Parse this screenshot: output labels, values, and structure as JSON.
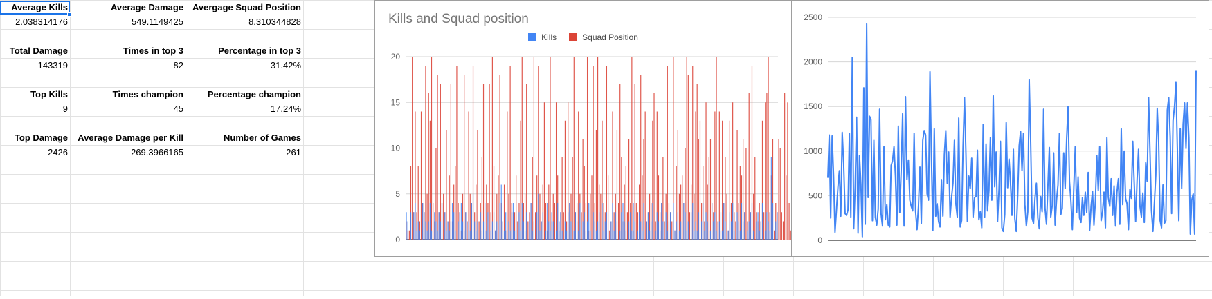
{
  "sheet": {
    "colors": {
      "gridline": "#e2e2e2",
      "selection": "#1a73e8"
    },
    "rows": [
      {
        "cells": [
          {
            "col": 0,
            "text": "Average Kills",
            "bold": true,
            "selected": true
          },
          {
            "col": 1,
            "text": "Average Damage",
            "bold": true
          },
          {
            "col": 2,
            "text": "Avergage Squad Position",
            "bold": true
          }
        ]
      },
      {
        "cells": [
          {
            "col": 0,
            "text": "2.038314176"
          },
          {
            "col": 1,
            "text": "549.1149425"
          },
          {
            "col": 2,
            "text": "8.310344828"
          }
        ]
      },
      {
        "cells": []
      },
      {
        "cells": [
          {
            "col": 0,
            "text": "Total Damage",
            "bold": true
          },
          {
            "col": 1,
            "text": "Times in top 3",
            "bold": true
          },
          {
            "col": 2,
            "text": "Percentage in top 3",
            "bold": true
          }
        ]
      },
      {
        "cells": [
          {
            "col": 0,
            "text": "143319"
          },
          {
            "col": 1,
            "text": "82"
          },
          {
            "col": 2,
            "text": "31.42%"
          }
        ]
      },
      {
        "cells": []
      },
      {
        "cells": [
          {
            "col": 0,
            "text": "Top Kills",
            "bold": true
          },
          {
            "col": 1,
            "text": "Times champion",
            "bold": true
          },
          {
            "col": 2,
            "text": "Percentage champion",
            "bold": true
          }
        ]
      },
      {
        "cells": [
          {
            "col": 0,
            "text": "9"
          },
          {
            "col": 1,
            "text": "45"
          },
          {
            "col": 2,
            "text": "17.24%"
          }
        ]
      },
      {
        "cells": []
      },
      {
        "cells": [
          {
            "col": 0,
            "text": "Top Damage",
            "bold": true
          },
          {
            "col": 1,
            "text": "Average Damage per Kill",
            "bold": true
          },
          {
            "col": 2,
            "text": "Number of Games",
            "bold": true
          }
        ]
      },
      {
        "cells": [
          {
            "col": 0,
            "text": "2426"
          },
          {
            "col": 1,
            "text": "269.3966165"
          },
          {
            "col": 2,
            "text": "261"
          }
        ]
      }
    ]
  },
  "chart_data": [
    {
      "type": "bar",
      "title": "Kills and Squad position",
      "xlabel": "",
      "ylabel": "",
      "ylim": [
        0,
        20
      ],
      "yticks": [
        0,
        5,
        10,
        15,
        20
      ],
      "grid": true,
      "legend": "top",
      "series": [
        {
          "name": "Kills",
          "color": "#4285f4",
          "values": [
            3,
            2,
            0,
            3,
            0,
            3,
            4,
            1,
            2,
            1,
            0,
            4,
            3,
            2,
            1,
            2,
            4,
            1,
            0,
            3,
            2,
            1,
            3,
            2,
            4,
            0,
            3,
            1,
            2,
            1,
            2,
            4,
            3,
            1,
            0,
            2,
            3,
            4,
            2,
            1,
            3,
            0,
            2,
            1,
            4,
            5,
            2,
            1,
            2,
            0,
            3,
            1,
            2,
            4,
            1,
            3,
            0,
            1,
            2,
            3,
            1,
            2,
            0,
            4,
            6,
            2,
            1,
            3,
            0,
            2,
            1,
            3,
            4,
            1,
            2,
            0,
            3,
            1,
            4,
            2,
            1,
            3,
            0,
            2,
            4,
            1,
            2,
            0,
            3,
            5,
            1,
            2,
            3,
            0,
            1,
            4,
            2,
            1,
            3,
            2,
            0,
            1,
            4,
            2,
            3,
            1,
            0,
            2,
            1,
            3,
            4,
            2,
            0,
            1,
            3,
            2,
            1,
            4,
            0,
            2,
            3,
            1,
            2,
            4,
            1,
            0,
            3,
            2,
            1,
            2,
            3,
            0,
            4,
            1,
            2,
            3,
            1,
            0,
            2,
            4,
            1,
            3,
            2,
            0,
            1,
            3,
            4,
            2,
            1,
            0,
            2,
            3,
            1,
            4,
            2,
            0,
            1,
            3,
            2,
            1,
            4,
            0,
            2,
            3,
            1,
            2,
            4,
            0,
            1,
            3,
            2,
            1,
            4,
            2,
            0,
            3,
            1,
            2,
            3,
            0,
            4,
            1,
            2,
            3,
            1,
            2,
            0,
            4,
            3,
            1,
            2,
            0,
            3,
            4,
            1,
            2,
            1,
            3,
            0,
            2,
            4,
            1,
            3,
            2,
            0,
            1,
            4,
            2,
            3,
            1,
            0,
            2,
            3,
            1,
            4,
            2,
            0,
            1,
            3,
            2,
            4,
            1,
            0,
            3,
            2,
            1,
            4,
            2,
            3,
            0,
            1,
            2,
            3,
            4,
            1,
            0,
            2,
            3,
            1,
            2,
            4,
            0,
            1,
            3,
            2,
            1,
            9,
            4,
            0,
            2,
            3
          ]
        },
        {
          "name": "Squad Position",
          "color": "#db4437",
          "values": [
            2,
            1,
            1,
            8,
            20,
            3,
            14,
            3,
            8,
            2,
            14,
            4,
            3,
            19,
            5,
            16,
            13,
            20,
            4,
            2,
            10,
            18,
            3,
            17,
            4,
            5,
            3,
            12,
            2,
            7,
            17,
            2,
            6,
            8,
            19,
            4,
            3,
            1,
            5,
            18,
            3,
            2,
            14,
            5,
            4,
            19,
            3,
            6,
            12,
            2,
            4,
            9,
            17,
            1,
            6,
            4,
            17,
            3,
            20,
            8,
            1,
            5,
            7,
            18,
            4,
            2,
            6,
            1,
            14,
            5,
            19,
            4,
            3,
            3,
            7,
            2,
            4,
            13,
            20,
            4,
            5,
            17,
            2,
            3,
            4,
            9,
            20,
            3,
            7,
            19,
            5,
            2,
            6,
            15,
            4,
            1,
            6,
            20,
            2,
            5,
            4,
            15,
            7,
            1,
            3,
            9,
            3,
            13,
            2,
            15,
            4,
            5,
            9,
            20,
            3,
            4,
            14,
            5,
            3,
            11,
            8,
            4,
            20,
            1,
            5,
            7,
            19,
            4,
            12,
            20,
            6,
            5,
            13,
            4,
            3,
            19,
            7,
            1,
            2,
            14,
            3,
            5,
            12,
            4,
            17,
            9,
            2,
            6,
            8,
            3,
            11,
            4,
            20,
            1,
            17,
            4,
            3,
            6,
            18,
            7,
            11,
            14,
            2,
            3,
            5,
            4,
            13,
            16,
            2,
            14,
            7,
            3,
            4,
            9,
            2,
            5,
            19,
            4,
            3,
            2,
            20,
            1,
            8,
            12,
            5,
            6,
            7,
            4,
            10,
            20,
            18,
            3,
            6,
            19,
            5,
            14,
            17,
            11,
            13,
            4,
            8,
            2,
            15,
            6,
            9,
            11,
            4,
            3,
            14,
            20,
            2,
            14,
            1,
            13,
            4,
            9,
            5,
            1,
            13,
            4,
            15,
            3,
            2,
            12,
            4,
            8,
            7,
            11,
            3,
            10,
            2,
            16,
            3,
            19,
            5,
            9,
            3,
            2,
            4,
            2,
            13,
            3,
            15,
            16,
            20,
            3,
            7,
            11,
            1,
            4,
            3,
            11,
            10,
            3,
            2,
            16,
            7,
            15,
            4,
            1,
            14
          ]
        }
      ]
    },
    {
      "type": "line",
      "title": "",
      "xlabel": "",
      "ylabel": "",
      "ylim": [
        0,
        2500
      ],
      "yticks": [
        0,
        500,
        1000,
        1500,
        2000,
        2500
      ],
      "grid": true,
      "series": [
        {
          "name": "",
          "color": "#4285f4",
          "values": [
            700,
            1180,
            250,
            1170,
            720,
            90,
            340,
            590,
            780,
            270,
            1210,
            860,
            300,
            280,
            340,
            1200,
            260,
            2050,
            130,
            600,
            1380,
            80,
            950,
            620,
            40,
            1710,
            180,
            2426,
            480,
            1390,
            1350,
            220,
            1120,
            260,
            170,
            350,
            1470,
            300,
            160,
            1050,
            230,
            400,
            170,
            150,
            840,
            890,
            1050,
            720,
            170,
            1280,
            310,
            780,
            1420,
            160,
            1610,
            680,
            900,
            450,
            380,
            330,
            1200,
            320,
            120,
            380,
            820,
            190,
            1120,
            1230,
            1180,
            520,
            450,
            1890,
            950,
            110,
            1250,
            270,
            410,
            210,
            150,
            680,
            270,
            960,
            1230,
            640,
            990,
            260,
            480,
            640,
            1120,
            410,
            260,
            1370,
            150,
            220,
            1050,
            1600,
            970,
            210,
            720,
            580,
            920,
            260,
            480,
            490,
            1010,
            230,
            320,
            140,
            1300,
            260,
            1080,
            330,
            560,
            1150,
            450,
            1620,
            600,
            990,
            210,
            570,
            1110,
            140,
            100,
            290,
            1320,
            590,
            910,
            640,
            280,
            1020,
            240,
            100,
            500,
            1060,
            1220,
            780,
            1200,
            400,
            160,
            320,
            1800,
            1110,
            250,
            190,
            470,
            640,
            250,
            130,
            490,
            320,
            1470,
            360,
            180,
            610,
            1040,
            260,
            390,
            980,
            170,
            450,
            620,
            1200,
            290,
            360,
            980,
            580,
            1130,
            1500,
            660,
            440,
            120,
            590,
            1050,
            310,
            710,
            250,
            200,
            480,
            280,
            540,
            310,
            760,
            110,
            380,
            550,
            170,
            440,
            950,
            560,
            1050,
            220,
            320,
            540,
            140,
            1150,
            480,
            380,
            690,
            280,
            610,
            160,
            540,
            690,
            180,
            1250,
            400,
            1000,
            470,
            410,
            120,
            570,
            470,
            1110,
            640,
            210,
            680,
            1020,
            380,
            260,
            530,
            200,
            870,
            660,
            1600,
            970,
            330,
            100,
            410,
            730,
            1480,
            1100,
            220,
            140,
            620,
            190,
            220,
            1460,
            1600,
            1160,
            300,
            1340,
            1500,
            1770,
            1010,
            220,
            1250,
            580,
            1300,
            1540,
            1030,
            1540,
            1150,
            70,
            450,
            520,
            70,
            1900
          ]
        }
      ]
    }
  ]
}
